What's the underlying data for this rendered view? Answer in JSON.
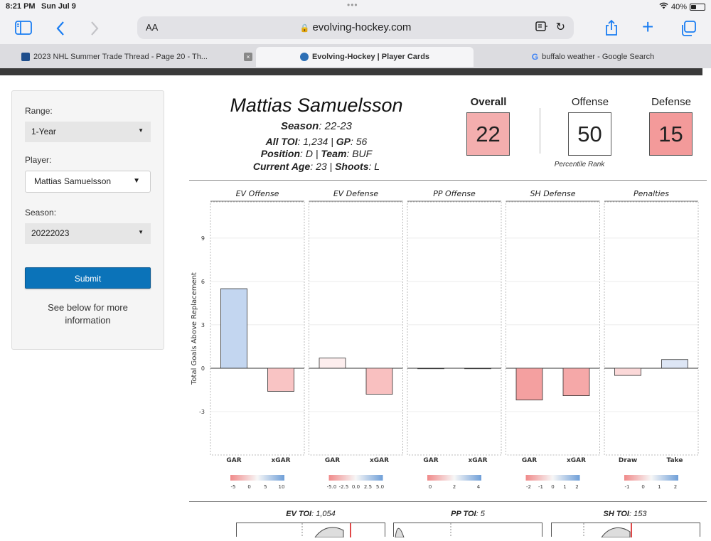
{
  "status_bar": {
    "time": "8:21 PM",
    "date": "Sun Jul 9",
    "battery": "40%",
    "battery_level": 0.4
  },
  "browser": {
    "aa_label": "AA",
    "url": "evolving-hockey.com",
    "tabs": [
      {
        "label": "2023 NHL Summer Trade Thread - Page 20 - Th...",
        "active": false,
        "favicon_color": "#1f4e8c"
      },
      {
        "label": "Evolving-Hockey | Player Cards",
        "active": true,
        "favicon_color": "#2d6fb5"
      },
      {
        "label": "buffalo weather - Google Search",
        "active": false,
        "favicon_color": "#4285f4"
      }
    ],
    "icons": [
      "sidebar-icon",
      "back-icon",
      "forward-icon",
      "reader-icon",
      "reload-icon",
      "share-icon",
      "new-tab-icon",
      "tabs-icon"
    ]
  },
  "sidebar": {
    "range_label": "Range:",
    "range_value": "1-Year",
    "player_label": "Player:",
    "player_value": "Mattias Samuelsson",
    "season_label": "Season:",
    "season_value": "20222023",
    "submit_label": "Submit",
    "note": "See below for more information"
  },
  "card": {
    "name": "Mattias Samuelsson",
    "season_key": "Season",
    "season_val": "22-23",
    "toi_key": "All TOI",
    "toi_val": "1,234",
    "gp_key": "GP",
    "gp_val": "56",
    "position_key": "Position",
    "position_val": "D",
    "team_key": "Team",
    "team_val": "BUF",
    "age_key": "Current Age",
    "age_val": "23",
    "shoots_key": "Shoots",
    "shoots_val": "L",
    "overall_label": "Overall",
    "overall_value": "22",
    "offense_label": "Offense",
    "offense_value": "50",
    "defense_label": "Defense",
    "defense_value": "15",
    "percentile_label": "Percentile Rank",
    "colors": {
      "overall": "#f4aeae",
      "offense": "#ffffff",
      "defense": "#f39a9a"
    }
  },
  "chart_data": {
    "type": "bar",
    "ylabel": "Total Goals Above Replacement",
    "ylim": [
      -6,
      11.5
    ],
    "yticks": [
      -3,
      0,
      3,
      6,
      9
    ],
    "panels": [
      {
        "title": "EV Offense",
        "categories": [
          "GAR",
          "xGAR"
        ],
        "values": [
          5.5,
          -1.6
        ],
        "colors": [
          "#c3d6f0",
          "#f9c4c4"
        ],
        "legend_ticks": [
          "-5",
          "0",
          "5",
          "10"
        ]
      },
      {
        "title": "EV Defense",
        "categories": [
          "GAR",
          "xGAR"
        ],
        "values": [
          0.7,
          -1.8
        ],
        "colors": [
          "#fdeeee",
          "#f9c0c0"
        ],
        "legend_ticks": [
          "-5.0",
          "-2.5",
          "0.0",
          "2.5",
          "5.0"
        ]
      },
      {
        "title": "PP Offense",
        "categories": [
          "GAR",
          "xGAR"
        ],
        "values": [
          0.0,
          0.0
        ],
        "colors": [
          "#eeeeee",
          "#eeeeee"
        ],
        "legend_ticks": [
          "0",
          "2",
          "4"
        ]
      },
      {
        "title": "SH Defense",
        "categories": [
          "GAR",
          "xGAR"
        ],
        "values": [
          -2.2,
          -1.9
        ],
        "colors": [
          "#f4a0a0",
          "#f5a8a8"
        ],
        "legend_ticks": [
          "-2",
          "-1",
          "0",
          "1",
          "2"
        ]
      },
      {
        "title": "Penalties",
        "categories": [
          "Draw",
          "Take"
        ],
        "values": [
          -0.5,
          0.6
        ],
        "colors": [
          "#fbd8d8",
          "#dde6f5"
        ],
        "legend_ticks": [
          "-1",
          "0",
          "1",
          "2"
        ]
      }
    ],
    "grid": true
  },
  "toi": [
    {
      "key": "EV TOI",
      "val": "1,054"
    },
    {
      "key": "PP TOI",
      "val": "5"
    },
    {
      "key": "SH TOI",
      "val": "153"
    }
  ]
}
